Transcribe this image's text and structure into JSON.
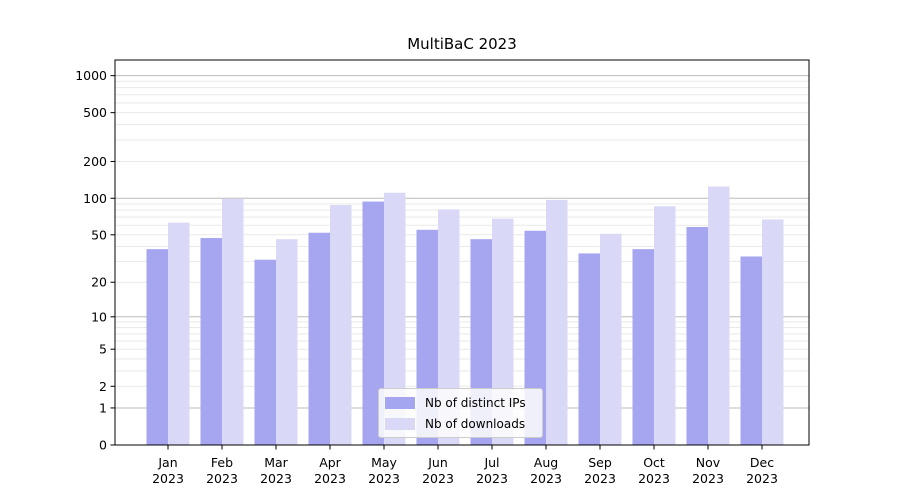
{
  "chart_data": {
    "type": "bar",
    "title": "MultiBaC 2023",
    "categories": [
      "Jan",
      "Feb",
      "Mar",
      "Apr",
      "May",
      "Jun",
      "Jul",
      "Aug",
      "Sep",
      "Oct",
      "Nov",
      "Dec"
    ],
    "x_sublabel": "2023",
    "series": [
      {
        "name": "Nb of distinct IPs",
        "color": "#a5a5f0",
        "values": [
          38,
          47,
          31,
          52,
          94,
          55,
          46,
          54,
          35,
          38,
          58,
          33
        ]
      },
      {
        "name": "Nb of downloads",
        "color": "#d9d9f7",
        "values": [
          63,
          99,
          46,
          88,
          111,
          81,
          68,
          97,
          51,
          86,
          125,
          67
        ]
      }
    ],
    "yscale": "log1p",
    "ylim": [
      0,
      1340
    ],
    "yticks": [
      0,
      1,
      2,
      5,
      10,
      20,
      50,
      100,
      200,
      500,
      1000
    ],
    "grid": {
      "major_values": [
        1,
        10,
        100,
        1000
      ],
      "minor_values": [
        2,
        3,
        4,
        5,
        6,
        7,
        8,
        9,
        20,
        30,
        40,
        50,
        60,
        70,
        80,
        90,
        200,
        300,
        400,
        500,
        600,
        700,
        800,
        900
      ],
      "major_color": "#bbbbbb",
      "minor_color": "#e9e9e9"
    },
    "legend_position": "lower center",
    "xlabel": "",
    "ylabel": "",
    "axis_color": "#000000",
    "background": "#ffffff"
  }
}
